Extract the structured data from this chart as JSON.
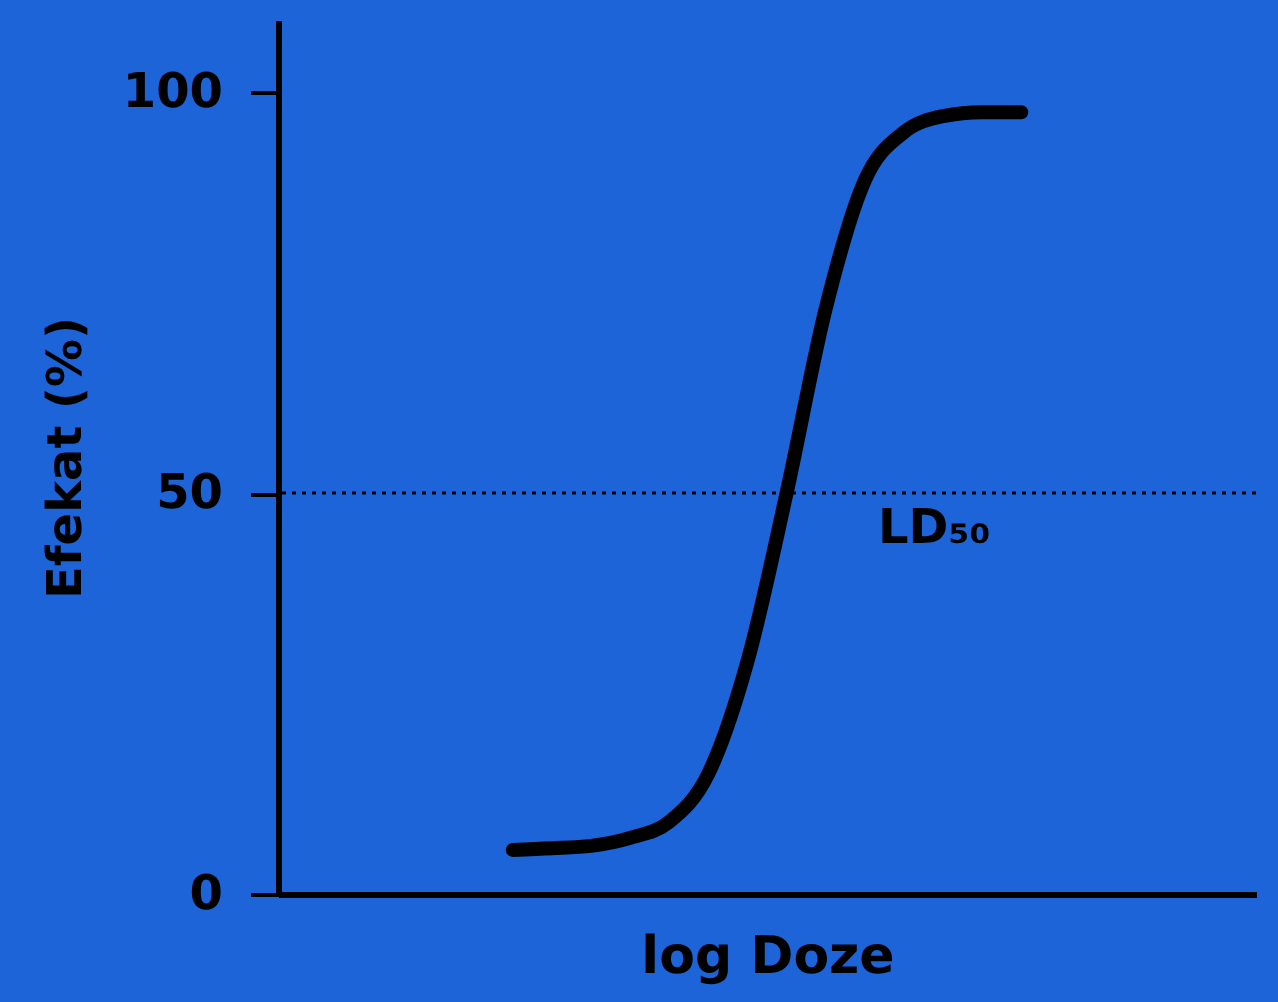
{
  "chart_data": {
    "type": "line",
    "xlabel": "log Doze",
    "ylabel": "Efekat (%)",
    "categories": [
      null,
      null,
      null,
      null,
      null,
      null,
      null,
      null,
      null,
      null,
      null,
      null,
      null,
      null,
      null,
      null,
      null,
      null,
      null,
      null,
      null,
      null,
      null,
      null,
      null,
      null
    ],
    "series": [
      {
        "color": "#000000",
        "values": [
          null,
          null,
          null,
          null,
          null,
          null,
          5.5,
          5.7,
          6,
          7,
          9,
          15,
          29,
          50,
          73,
          89,
          95,
          97,
          97.5,
          97.5,
          null,
          null,
          null,
          null,
          null,
          null
        ]
      }
    ],
    "ylim": [
      0,
      109
    ],
    "yticks": [
      0,
      50,
      100
    ],
    "tick_labels": "y",
    "grid": false,
    "marker": "none",
    "line_style": "solid",
    "ref_lines": [
      {
        "axis": "y",
        "value": 50,
        "line_style": "dotted",
        "color": "#000000"
      }
    ],
    "annotations": [
      {
        "text": "LD₅₀",
        "y": 50
      }
    ]
  }
}
